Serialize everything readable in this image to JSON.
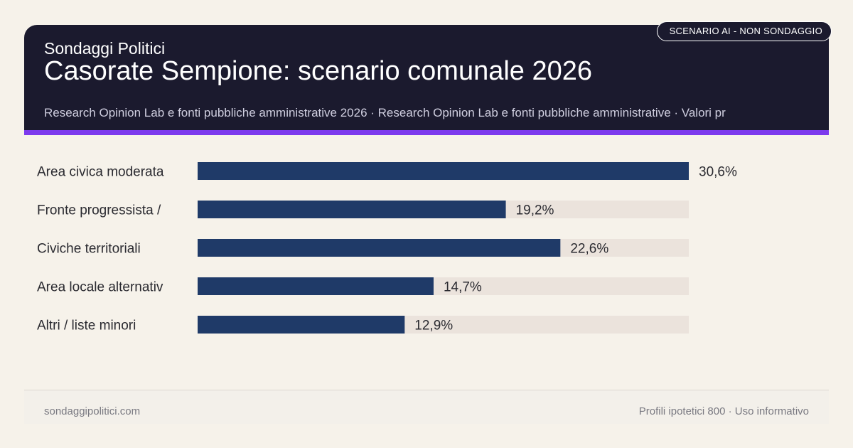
{
  "header": {
    "badge": "SCENARIO AI - NON SONDAGGIO",
    "brand": "Sondaggi Politici",
    "title": "Casorate Sempione: scenario comunale 2026",
    "sources": "Research Opinion Lab e fonti pubbliche amministrative 2026 · Research Opinion Lab e fonti pubbliche amministrative · Valori pr"
  },
  "colors": {
    "header_bg": "#1b1a2e",
    "accent": "#7c3aed",
    "bar": "#1f3a68",
    "track": "#ebe3dc",
    "background": "#f6f2ea"
  },
  "chart_data": {
    "type": "bar",
    "orientation": "horizontal",
    "categories": [
      "Area civica moderata",
      "Fronte progressista /",
      "Civiche territoriali",
      "Area locale alternativ",
      "Altri / liste minori"
    ],
    "values": [
      30.6,
      19.2,
      22.6,
      14.7,
      12.9
    ],
    "value_labels": [
      "30,6%",
      "19,2%",
      "22,6%",
      "14,7%",
      "12,9%"
    ],
    "xlim": [
      0,
      30.6
    ],
    "grid": false
  },
  "footer": {
    "site": "sondaggipolitici.com",
    "note": "Profili ipotetici 800 · Uso informativo"
  }
}
